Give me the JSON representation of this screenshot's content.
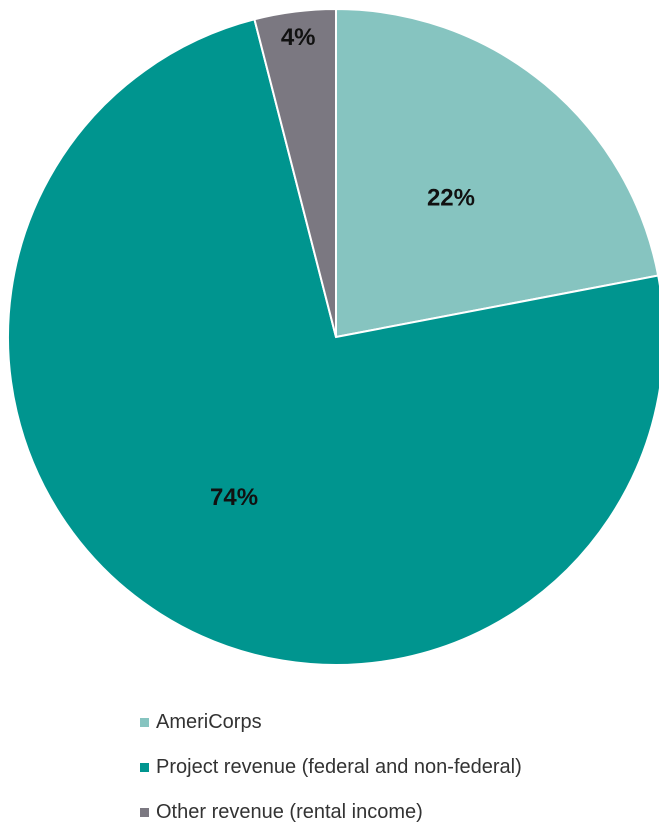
{
  "chart_data": {
    "type": "pie",
    "series": [
      {
        "name": "AmeriCorps",
        "value": 22,
        "label": "22%",
        "color": "#86c4c0"
      },
      {
        "name": "Project revenue (federal and non-federal)",
        "value": 74,
        "label": "74%",
        "color": "#00958f"
      },
      {
        "name": "Other revenue (rental income)",
        "value": 4,
        "label": "4%",
        "color": "#7b7881"
      }
    ],
    "start_angle": "12 o'clock",
    "direction": "clockwise",
    "legend_position": "bottom"
  }
}
